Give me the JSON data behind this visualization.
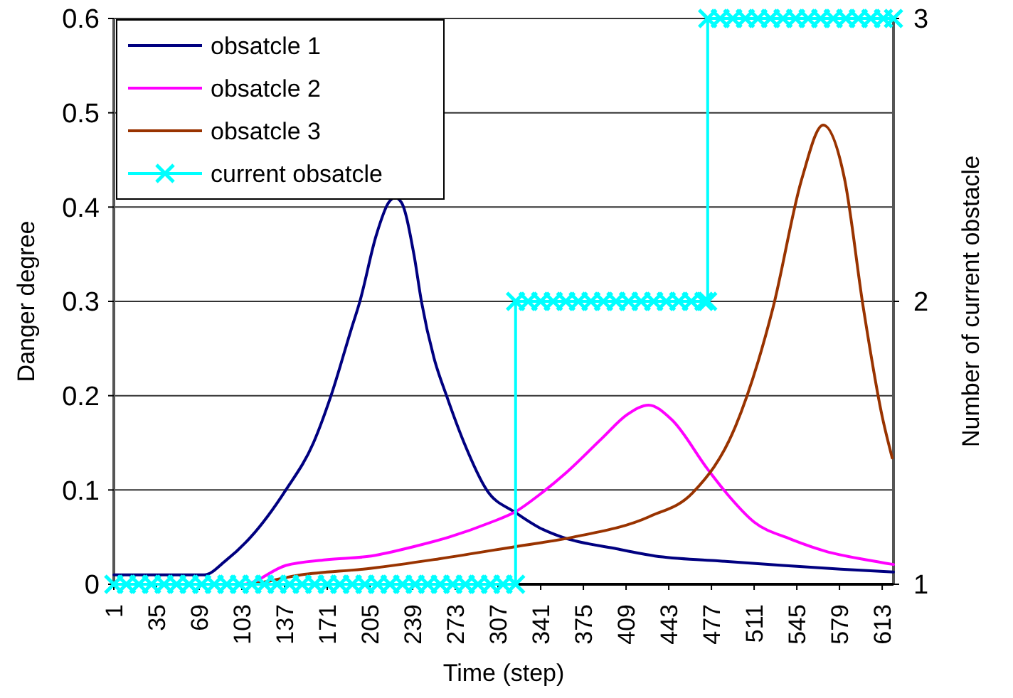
{
  "chart_data": {
    "type": "line",
    "xlabel": "Time (step)",
    "ylabel": "Danger degree",
    "y2label": "Number of current obstacle",
    "xlim": [
      1,
      622
    ],
    "xticks": [
      1,
      35,
      69,
      103,
      137,
      171,
      205,
      239,
      273,
      307,
      341,
      375,
      409,
      443,
      477,
      511,
      545,
      579,
      613
    ],
    "ylim": [
      0,
      0.6
    ],
    "yticks": [
      0,
      0.1,
      0.2,
      0.3,
      0.4,
      0.5,
      0.6
    ],
    "y2lim": [
      1,
      3
    ],
    "y2ticks": [
      1,
      2,
      3
    ],
    "grid": "y",
    "legend": "top left",
    "line_style": "solid",
    "series": [
      {
        "name": "obsatcle 1",
        "color": "#000080",
        "marker": "none",
        "x": [
          1,
          73,
          90,
          110,
          138,
          160,
          174,
          190,
          197,
          210,
          220,
          225,
          230,
          240,
          246,
          256,
          266,
          280,
          298,
          321,
          340,
          358,
          400,
          432,
          480,
          534,
          580,
          622
        ],
        "values": [
          0.01,
          0.01,
          0.025,
          0.05,
          0.1,
          0.15,
          0.2,
          0.27,
          0.3,
          0.37,
          0.405,
          0.41,
          0.405,
          0.35,
          0.3,
          0.24,
          0.2,
          0.15,
          0.1,
          0.076,
          0.06,
          0.05,
          0.038,
          0.03,
          0.025,
          0.02,
          0.016,
          0.013
        ]
      },
      {
        "name": "obsatcle 2",
        "color": "#ff00ff",
        "marker": "none",
        "x": [
          1,
          104,
          138,
          170,
          206,
          240,
          268,
          300,
          321,
          340,
          361,
          390,
          410,
          427,
          445,
          474,
          490,
          511,
          540,
          568,
          600,
          622
        ],
        "values": [
          0,
          0,
          0.02,
          0.026,
          0.03,
          0.04,
          0.05,
          0.065,
          0.077,
          0.095,
          0.118,
          0.155,
          0.18,
          0.19,
          0.175,
          0.122,
          0.095,
          0.066,
          0.048,
          0.035,
          0.026,
          0.021
        ]
      },
      {
        "name": "obsatcle 3",
        "color": "#993300",
        "marker": "none",
        "x": [
          1,
          104,
          150,
          206,
          260,
          321,
          367,
          428,
          462,
          496,
          526,
          549,
          566,
          583,
          598,
          613,
          621
        ],
        "values": [
          0,
          0,
          0.01,
          0.017,
          0.027,
          0.04,
          0.05,
          0.072,
          0.097,
          0.167,
          0.293,
          0.43,
          0.487,
          0.43,
          0.293,
          0.178,
          0.134
        ]
      },
      {
        "name": "current obsatcle",
        "color": "#00ffff",
        "marker": "cross",
        "axis": "y2",
        "x": [
          1,
          11,
          21,
          31,
          41,
          51,
          61,
          71,
          81,
          91,
          101,
          111,
          121,
          131,
          141,
          151,
          161,
          171,
          181,
          191,
          201,
          211,
          221,
          231,
          241,
          251,
          261,
          271,
          281,
          291,
          301,
          311,
          321,
          321,
          331,
          341,
          351,
          361,
          371,
          381,
          391,
          401,
          411,
          421,
          431,
          441,
          451,
          461,
          471,
          474,
          474,
          484,
          494,
          504,
          514,
          524,
          534,
          544,
          554,
          564,
          574,
          584,
          594,
          604,
          614,
          622
        ],
        "values": [
          1,
          1,
          1,
          1,
          1,
          1,
          1,
          1,
          1,
          1,
          1,
          1,
          1,
          1,
          1,
          1,
          1,
          1,
          1,
          1,
          1,
          1,
          1,
          1,
          1,
          1,
          1,
          1,
          1,
          1,
          1,
          1,
          1,
          2,
          2,
          2,
          2,
          2,
          2,
          2,
          2,
          2,
          2,
          2,
          2,
          2,
          2,
          2,
          2,
          2,
          3,
          3,
          3,
          3,
          3,
          3,
          3,
          3,
          3,
          3,
          3,
          3,
          3,
          3,
          3,
          3
        ]
      }
    ]
  }
}
